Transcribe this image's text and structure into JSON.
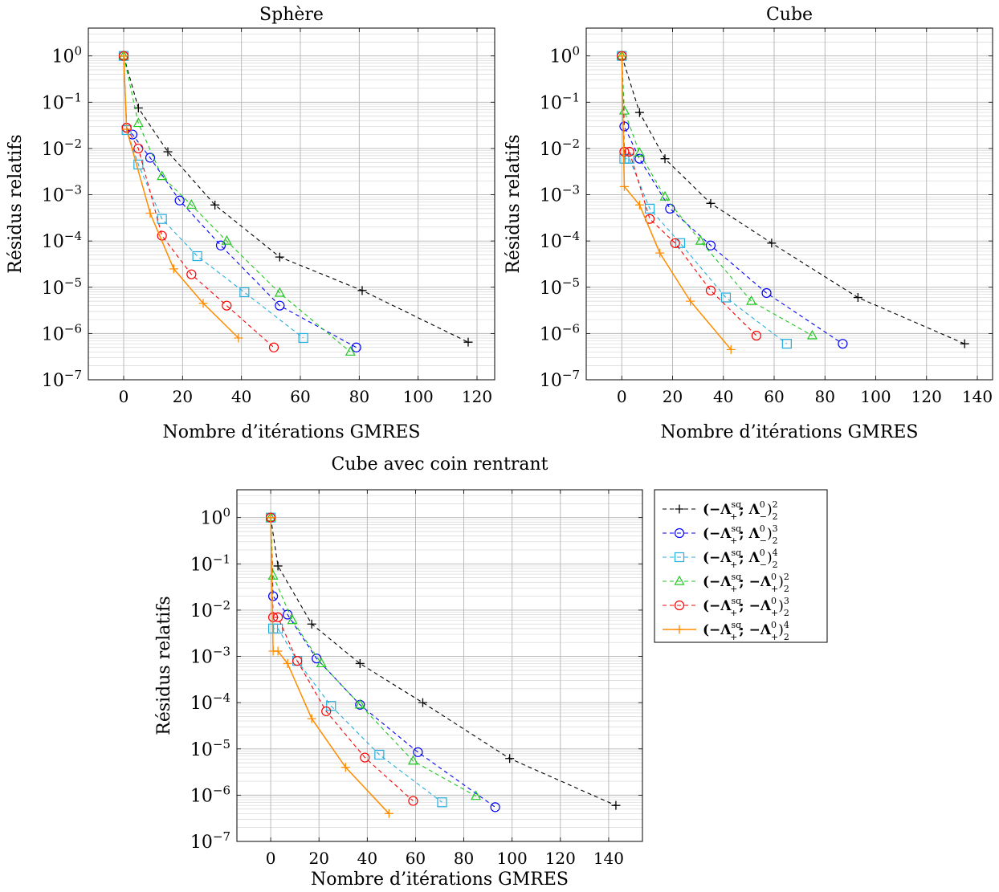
{
  "chart_data": [
    {
      "type": "line",
      "title": "Sphère",
      "xlabel": "Nombre d’itérations GMRES",
      "ylabel": "Résidus relatifs",
      "yscale": "log",
      "xlim": [
        -12,
        126
      ],
      "ylim": [
        1e-07,
        4
      ],
      "xticks": [
        0,
        20,
        40,
        60,
        80,
        100,
        120
      ],
      "yticks": [
        "10^0",
        "10^-1",
        "10^-2",
        "10^-3",
        "10^-4",
        "10^-5",
        "10^-6",
        "10^-7"
      ],
      "grid": true,
      "series": [
        {
          "id": "s1",
          "x": [
            0,
            5,
            15,
            31,
            53,
            81,
            117
          ],
          "y": [
            1,
            0.075,
            0.0085,
            0.0006,
            4.5e-05,
            8.5e-06,
            6.5e-07
          ]
        },
        {
          "id": "s2",
          "x": [
            0,
            1,
            3,
            9,
            19,
            33,
            53,
            79
          ],
          "y": [
            1,
            0.028,
            0.02,
            0.0063,
            0.00075,
            8e-05,
            4e-06,
            5e-07
          ]
        },
        {
          "id": "s3",
          "x": [
            0,
            1,
            5,
            13,
            25,
            41,
            61
          ],
          "y": [
            1,
            0.025,
            0.0045,
            0.0003,
            4.7e-05,
            7.8e-06,
            8e-07
          ]
        },
        {
          "id": "s4",
          "x": [
            0,
            5,
            13,
            23,
            35,
            53,
            77
          ],
          "y": [
            1,
            0.035,
            0.0025,
            0.0006,
            0.0001,
            7.5e-06,
            4e-07
          ]
        },
        {
          "id": "s5",
          "x": [
            0,
            1,
            5,
            13,
            23,
            35,
            51
          ],
          "y": [
            1,
            0.028,
            0.01,
            0.00013,
            1.9e-05,
            4e-06,
            5e-07
          ]
        },
        {
          "id": "s6",
          "x": [
            0,
            1,
            9,
            17,
            27,
            39
          ],
          "y": [
            1,
            0.026,
            0.0004,
            2.5e-05,
            4.5e-06,
            8e-07
          ]
        }
      ]
    },
    {
      "type": "line",
      "title": "Cube",
      "xlabel": "Nombre d’itérations GMRES",
      "ylabel": "Résidus relatifs",
      "yscale": "log",
      "xlim": [
        -14,
        146
      ],
      "ylim": [
        1e-07,
        4
      ],
      "xticks": [
        0,
        20,
        40,
        60,
        80,
        100,
        120,
        140
      ],
      "yticks": [
        "10^0",
        "10^-1",
        "10^-2",
        "10^-3",
        "10^-4",
        "10^-5",
        "10^-6",
        "10^-7"
      ],
      "grid": true,
      "series": [
        {
          "id": "s1",
          "x": [
            0,
            7,
            17,
            35,
            59,
            93,
            135
          ],
          "y": [
            1,
            0.06,
            0.006,
            0.00065,
            9e-05,
            6e-06,
            6e-07
          ]
        },
        {
          "id": "s2",
          "x": [
            0,
            1,
            7,
            19,
            35,
            57,
            87
          ],
          "y": [
            1,
            0.03,
            0.006,
            0.0005,
            8e-05,
            7.5e-06,
            6e-07
          ]
        },
        {
          "id": "s3",
          "x": [
            0,
            1,
            3,
            11,
            23,
            41,
            65
          ],
          "y": [
            1,
            0.006,
            0.006,
            0.0005,
            9e-05,
            6e-06,
            6e-07
          ]
        },
        {
          "id": "s4",
          "x": [
            0,
            1,
            7,
            17,
            31,
            51,
            75
          ],
          "y": [
            1,
            0.065,
            0.008,
            0.0009,
            0.0001,
            5e-06,
            9e-07
          ]
        },
        {
          "id": "s5",
          "x": [
            0,
            1,
            3,
            11,
            21,
            35,
            53
          ],
          "y": [
            1,
            0.0085,
            0.0085,
            0.0003,
            9e-05,
            8.5e-06,
            9e-07
          ]
        },
        {
          "id": "s6",
          "x": [
            0,
            1,
            7,
            15,
            27,
            43
          ],
          "y": [
            1,
            0.0015,
            0.0006,
            5.5e-05,
            5e-06,
            4.5e-07
          ]
        }
      ]
    },
    {
      "type": "line",
      "title": "Cube avec coin rentrant",
      "xlabel": "Nombre d’itérations GMRES",
      "ylabel": "Résidus relatifs",
      "yscale": "log",
      "xlim": [
        -14,
        154
      ],
      "ylim": [
        1e-07,
        4
      ],
      "xticks": [
        0,
        20,
        40,
        60,
        80,
        100,
        120,
        140
      ],
      "yticks": [
        "10^0",
        "10^-1",
        "10^-2",
        "10^-3",
        "10^-4",
        "10^-5",
        "10^-6",
        "10^-7"
      ],
      "grid": true,
      "series": [
        {
          "id": "s1",
          "x": [
            0,
            3,
            17,
            37,
            63,
            99,
            143
          ],
          "y": [
            1,
            0.09,
            0.005,
            0.0007,
            0.0001,
            6.2e-06,
            6e-07
          ]
        },
        {
          "id": "s2",
          "x": [
            0,
            1,
            7,
            19,
            37,
            61,
            93
          ],
          "y": [
            1,
            0.02,
            0.008,
            0.0009,
            9e-05,
            8.5e-06,
            5.5e-07
          ]
        },
        {
          "id": "s3",
          "x": [
            0,
            1,
            3,
            11,
            25,
            45,
            71
          ],
          "y": [
            1,
            0.004,
            0.004,
            0.0008,
            8.5e-05,
            7.5e-06,
            7e-07
          ]
        },
        {
          "id": "s4",
          "x": [
            0,
            1,
            9,
            21,
            37,
            59,
            85
          ],
          "y": [
            1,
            0.055,
            0.006,
            0.0007,
            9e-05,
            5.5e-06,
            9.5e-07
          ]
        },
        {
          "id": "s5",
          "x": [
            0,
            1,
            3,
            11,
            23,
            39,
            59
          ],
          "y": [
            1,
            0.007,
            0.007,
            0.0008,
            6.5e-05,
            6.5e-06,
            7.5e-07
          ]
        },
        {
          "id": "s6",
          "x": [
            0,
            1,
            3,
            7,
            17,
            31,
            49
          ],
          "y": [
            1,
            0.0013,
            0.0013,
            0.0007,
            4.5e-05,
            4e-06,
            4e-07
          ]
        }
      ]
    }
  ],
  "legend": {
    "placement": "right of bottom chart",
    "entries": [
      {
        "id": "s1",
        "color": "#000000",
        "marker": "plus",
        "dashed": true,
        "label": "(−Λ₊^sq; Λ₋⁰)₂²",
        "main": "(−Λ",
        "sup1": "sq",
        "sub1": "+",
        "mid": "; Λ",
        "sup2": "0",
        "sub2": "−",
        "close": ")",
        "sup3": "2",
        "sub3": "2"
      },
      {
        "id": "s2",
        "color": "#0000ff",
        "marker": "circle",
        "dashed": true,
        "label": "(−Λ₊^sq; Λ₋⁰)₂³",
        "main": "(−Λ",
        "sup1": "sq",
        "sub1": "+",
        "mid": "; Λ",
        "sup2": "0",
        "sub2": "−",
        "close": ")",
        "sup3": "3",
        "sub3": "2"
      },
      {
        "id": "s3",
        "color": "#22aee0",
        "marker": "square",
        "dashed": true,
        "label": "(−Λ₊^sq; Λ₋⁰)₂⁴",
        "main": "(−Λ",
        "sup1": "sq",
        "sub1": "+",
        "mid": "; Λ",
        "sup2": "0",
        "sub2": "−",
        "close": ")",
        "sup3": "4",
        "sub3": "2"
      },
      {
        "id": "s4",
        "color": "#1ec81e",
        "marker": "triangle",
        "dashed": true,
        "label": "(−Λ₊^sq; −Λ₊⁰)₂²",
        "main": "(−Λ",
        "sup1": "sq",
        "sub1": "+",
        "mid": "; −Λ",
        "sup2": "0",
        "sub2": "+",
        "close": ")",
        "sup3": "2",
        "sub3": "2"
      },
      {
        "id": "s5",
        "color": "#ff0000",
        "marker": "circle",
        "dashed": true,
        "label": "(−Λ₊^sq; −Λ₊⁰)₂³",
        "main": "(−Λ",
        "sup1": "sq",
        "sub1": "+",
        "mid": "; −Λ",
        "sup2": "0",
        "sub2": "+",
        "close": ")",
        "sup3": "3",
        "sub3": "2"
      },
      {
        "id": "s6",
        "color": "#ff8c00",
        "marker": "plus",
        "dashed": false,
        "label": "(−Λ₊^sq; −Λ₊⁰)₂⁴",
        "main": "(−Λ",
        "sup1": "sq",
        "sub1": "+",
        "mid": "; −Λ",
        "sup2": "0",
        "sub2": "+",
        "close": ")",
        "sup3": "4",
        "sub3": "2"
      }
    ]
  }
}
